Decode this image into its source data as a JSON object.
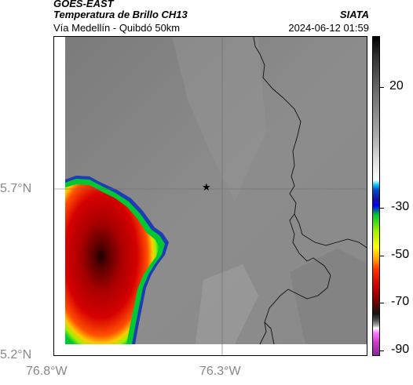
{
  "header": {
    "satellite": "GOES-EAST",
    "product": "Temperatura de Brillo CH13",
    "region": "Vía Medellín - Quibdó 50km",
    "source": "SIATA",
    "timestamp": "2024-06-12 01:59"
  },
  "axes": {
    "lat_labels": [
      "5.7°N",
      "5.2°N"
    ],
    "lon_labels": [
      "76.8°W",
      "76.3°W"
    ]
  },
  "marker": {
    "symbol": "★"
  },
  "colorbar": {
    "ticks": [
      "20",
      "-30",
      "-50",
      "-70",
      "-90"
    ]
  },
  "colors": {
    "background_gray": "#8a8a8a",
    "cloud_red": "#d10000",
    "cloud_yellow": "#f2f200",
    "cloud_green": "#00c800",
    "cloud_blue": "#1e3cb4"
  }
}
